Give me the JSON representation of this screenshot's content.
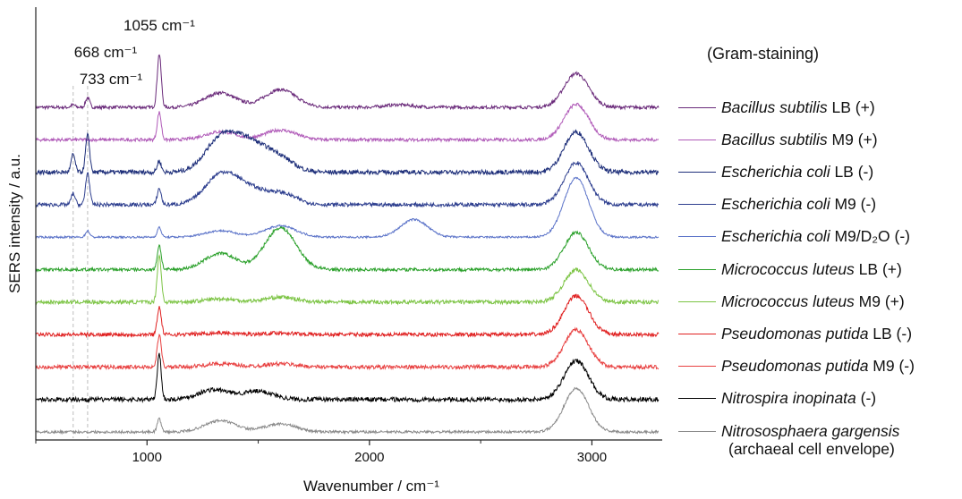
{
  "chart_data": {
    "type": "line",
    "xlabel": "Wavenumber / cm⁻¹",
    "ylabel": "SERS intensity / a.u.",
    "xlim": [
      500,
      3300
    ],
    "xticks": [
      1000,
      2000,
      3000
    ],
    "grid": false,
    "legend_title": "(Gram-staining)",
    "annotations": [
      {
        "text": "1055 cm⁻¹",
        "x": 1055
      },
      {
        "text": "668 cm⁻¹",
        "x": 668
      },
      {
        "text": "733 cm⁻¹",
        "x": 733
      }
    ],
    "series": [
      {
        "species": "Bacillus subtilis",
        "suffix": " LB (+)",
        "color": "#6a2a7a",
        "peaks": [
          [
            668,
            0.08
          ],
          [
            733,
            0.3
          ],
          [
            1055,
            1.65
          ],
          [
            1330,
            0.45
          ],
          [
            1600,
            0.55
          ],
          [
            2130,
            0.08
          ],
          [
            2930,
            1.05
          ]
        ],
        "noise": 0.05
      },
      {
        "species": "Bacillus subtilis",
        "suffix": " M9 (+)",
        "color": "#b05ab8",
        "peaks": [
          [
            1055,
            0.85
          ],
          [
            1330,
            0.25
          ],
          [
            1600,
            0.3
          ],
          [
            2930,
            1.1
          ]
        ],
        "noise": 0.05
      },
      {
        "species": "Escherichia coli",
        "suffix": " LB (-)",
        "color": "#1e2f7a",
        "peaks": [
          [
            668,
            0.55
          ],
          [
            733,
            1.15
          ],
          [
            1055,
            0.35
          ],
          [
            1330,
            1.0
          ],
          [
            1450,
            0.8
          ],
          [
            1580,
            0.5
          ],
          [
            2930,
            1.25
          ]
        ],
        "noise": 0.07
      },
      {
        "species": "Escherichia coli",
        "suffix": " M9 (-)",
        "color": "#2e3f8f",
        "peaks": [
          [
            668,
            0.35
          ],
          [
            733,
            1.0
          ],
          [
            1055,
            0.5
          ],
          [
            1330,
            0.9
          ],
          [
            1450,
            0.45
          ],
          [
            1600,
            0.35
          ],
          [
            2930,
            1.3
          ]
        ],
        "noise": 0.06
      },
      {
        "species": "Escherichia coli",
        "suffix": " M9/D₂O (-)",
        "color": "#5a72c8",
        "peaks": [
          [
            733,
            0.2
          ],
          [
            1055,
            0.3
          ],
          [
            1330,
            0.2
          ],
          [
            1600,
            0.35
          ],
          [
            2200,
            0.55
          ],
          [
            2930,
            1.85
          ]
        ],
        "noise": 0.03
      },
      {
        "species": "Micrococcus luteus",
        "suffix": " LB (+)",
        "color": "#2aa02a",
        "peaks": [
          [
            1055,
            0.75
          ],
          [
            1330,
            0.5
          ],
          [
            1600,
            1.3
          ],
          [
            2930,
            1.15
          ]
        ],
        "noise": 0.05
      },
      {
        "species": "Micrococcus luteus",
        "suffix": " M9 (+)",
        "color": "#7cc444",
        "peaks": [
          [
            1055,
            1.45
          ],
          [
            1330,
            0.1
          ],
          [
            1600,
            0.15
          ],
          [
            2930,
            1.0
          ]
        ],
        "noise": 0.06
      },
      {
        "species": "Pseudomonas putida",
        "suffix": " LB (-)",
        "color": "#e02020",
        "peaks": [
          [
            1055,
            0.85
          ],
          [
            1330,
            0.05
          ],
          [
            1600,
            0.05
          ],
          [
            2930,
            1.2
          ]
        ],
        "noise": 0.06
      },
      {
        "species": "Pseudomonas putida",
        "suffix": " M9 (-)",
        "color": "#e84040",
        "peaks": [
          [
            1055,
            1.0
          ],
          [
            1330,
            0.1
          ],
          [
            1600,
            0.1
          ],
          [
            2930,
            1.15
          ]
        ],
        "noise": 0.06
      },
      {
        "species": "Nitrospira inopinata",
        "suffix": " (-)",
        "color": "#000000",
        "peaks": [
          [
            1055,
            1.4
          ],
          [
            1300,
            0.3
          ],
          [
            1500,
            0.25
          ],
          [
            2930,
            1.2
          ]
        ],
        "noise": 0.07
      },
      {
        "species": "Nitrososphaera gargensis",
        "suffix": "",
        "sub": "(archaeal cell envelope)",
        "color": "#8a8a8a",
        "peaks": [
          [
            1055,
            0.4
          ],
          [
            1330,
            0.35
          ],
          [
            1600,
            0.25
          ],
          [
            2930,
            1.35
          ]
        ],
        "noise": 0.04
      }
    ]
  }
}
